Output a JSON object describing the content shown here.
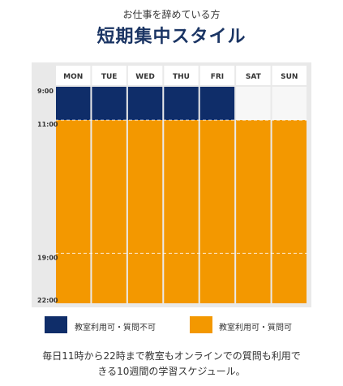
{
  "header": {
    "subtitle": "お仕事を辞めている方",
    "title": "短期集中スタイル"
  },
  "chart_data": {
    "type": "schedule",
    "days": [
      "MON",
      "TUE",
      "WED",
      "THU",
      "FRI",
      "SAT",
      "SUN"
    ],
    "time_ticks": [
      "9:00",
      "11:00",
      "19:00",
      "22:00"
    ],
    "y_range_hours": [
      9,
      22
    ],
    "series": [
      {
        "name": "教室利用可・質問不可",
        "color": "#0f2d69",
        "blocks": [
          {
            "day": "MON",
            "start": 9,
            "end": 11
          },
          {
            "day": "TUE",
            "start": 9,
            "end": 11
          },
          {
            "day": "WED",
            "start": 9,
            "end": 11
          },
          {
            "day": "THU",
            "start": 9,
            "end": 11
          },
          {
            "day": "FRI",
            "start": 9,
            "end": 11
          }
        ]
      },
      {
        "name": "教室利用可・質問可",
        "color": "#f39800",
        "blocks": [
          {
            "day": "MON",
            "start": 11,
            "end": 22
          },
          {
            "day": "TUE",
            "start": 11,
            "end": 22
          },
          {
            "day": "WED",
            "start": 11,
            "end": 22
          },
          {
            "day": "THU",
            "start": 11,
            "end": 22
          },
          {
            "day": "FRI",
            "start": 11,
            "end": 22
          },
          {
            "day": "SAT",
            "start": 11,
            "end": 22
          },
          {
            "day": "SUN",
            "start": 11,
            "end": 22
          }
        ]
      }
    ],
    "dashed_guides": [
      11,
      19
    ]
  },
  "legend": {
    "items": [
      {
        "label": "教室利用可・質問不可",
        "color": "#0f2d69"
      },
      {
        "label": "教室利用可・質問可",
        "color": "#f39800"
      }
    ]
  },
  "footer": {
    "line1": "毎日11時から22時まで教室もオンラインでの質問も利用で",
    "line2": "きる10週間の学習スケジュール。"
  }
}
